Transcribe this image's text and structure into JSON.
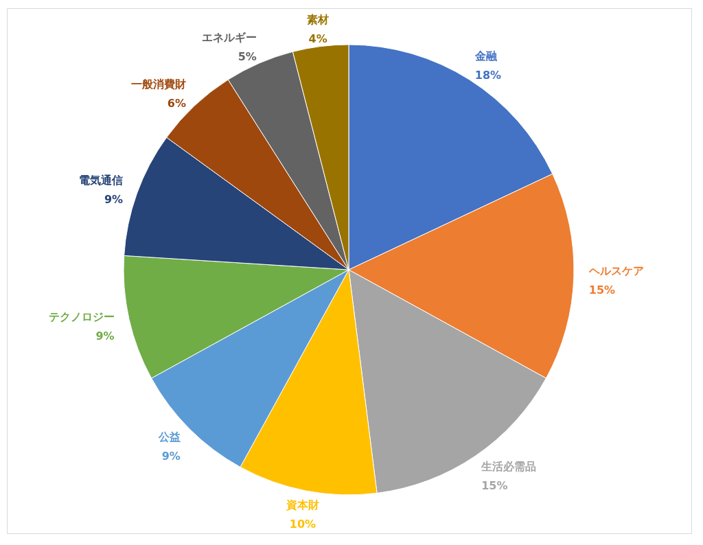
{
  "chart_data": {
    "type": "pie",
    "categories": [
      "金融",
      "ヘルスケア",
      "生活必需品",
      "資本財",
      "公益",
      "テクノロジー",
      "電気通信",
      "一般消費財",
      "エネルギー",
      "素材"
    ],
    "values": [
      18,
      15,
      15,
      10,
      9,
      9,
      9,
      6,
      5,
      4
    ],
    "colors": [
      "#4472c4",
      "#ed7d31",
      "#a5a5a5",
      "#ffc000",
      "#5b9bd5",
      "#70ad47",
      "#264478",
      "#9e480e",
      "#636363",
      "#997300"
    ],
    "value_labels": [
      "18%",
      "15%",
      "15%",
      "10%",
      "9%",
      "9%",
      "9%",
      "6%",
      "5%",
      "4%"
    ]
  }
}
